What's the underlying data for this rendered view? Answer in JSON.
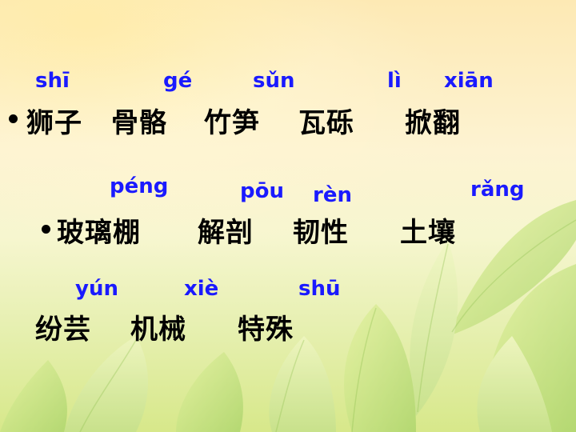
{
  "slide": {
    "row1": {
      "pinyin": [
        "shī",
        "gé",
        "sǔn",
        "lì",
        "xiān"
      ],
      "words": [
        "狮子",
        "骨骼",
        "竹笋",
        "瓦砾",
        "掀翻"
      ]
    },
    "row2": {
      "pinyin": [
        "péng",
        "pōu",
        "rèn",
        "rǎng"
      ],
      "words": [
        "玻璃棚",
        "解剖",
        "韧性",
        "土壤"
      ]
    },
    "row3": {
      "pinyin": [
        "yún",
        "xiè",
        "shū"
      ],
      "words": [
        "纷芸",
        "机械",
        "特殊"
      ]
    }
  },
  "colors": {
    "pinyin": "#1a1aff",
    "text": "#000000"
  }
}
